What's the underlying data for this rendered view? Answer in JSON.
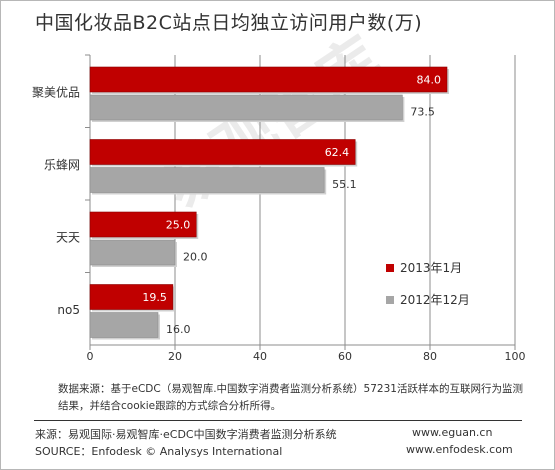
{
  "watermark": "易观智库",
  "note": "数据来源：基于eCDC（易观智库.中国数字消费者监测分析系统）57231活跃样本的互联网行为监测结果，并结合cookie跟踪的方式综合分析所得。",
  "footer": {
    "source_cn": "来源：易观国际·易观智库·eCDC中国数字消费者监测分析系统",
    "source_en": "SOURCE：Enfodesk © Analysys International",
    "url1": "www.eguan.cn",
    "url2": "www.enfodesk.com"
  },
  "colors": {
    "series1": "#c00000",
    "series2": "#a6a6a6",
    "grid": "#8c8c8c",
    "text": "#333333"
  },
  "chart_data": {
    "type": "bar",
    "orientation": "horizontal",
    "title": "中国化妆品B2C站点日均独立访问用户数(万)",
    "categories": [
      "聚美优品",
      "乐蜂网",
      "天天",
      "no5"
    ],
    "series": [
      {
        "name": "2013年1月",
        "values": [
          84.0,
          62.4,
          25.0,
          19.5
        ],
        "labels": [
          "84.0",
          "62.4",
          "25.0",
          "19.5"
        ]
      },
      {
        "name": "2012年12月",
        "values": [
          73.5,
          55.1,
          20.0,
          16.0
        ],
        "labels": [
          "73.5",
          "55.1",
          "20.0",
          "16.0"
        ]
      }
    ],
    "xlim": [
      0,
      100
    ],
    "xticks": [
      "0",
      "20",
      "40",
      "60",
      "80",
      "100"
    ],
    "grid": true,
    "legend_position": "right"
  }
}
